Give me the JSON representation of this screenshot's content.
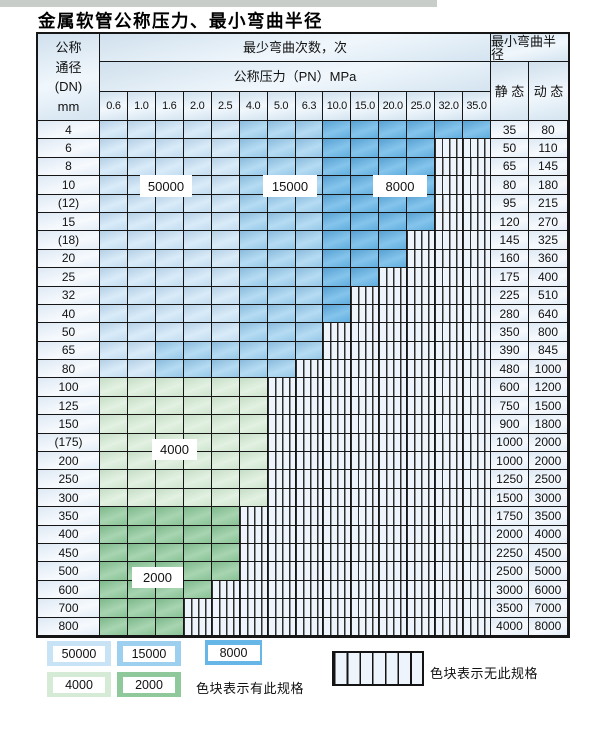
{
  "title": "金属软管公称压力、最小弯曲半径",
  "colors": {
    "blue_50000": "#c9e3f6",
    "blue_15000": "#9dd0ef",
    "blue_8000": "#66b6e7",
    "green_4000": "#d6ebd5",
    "green_2000": "#8fc99b",
    "hatch_bg": "#eef4fb",
    "header_bg": "#dfeef9",
    "grid_line": "#161616",
    "top_strip": "#c9cdc9"
  },
  "table": {
    "header": {
      "dn_lines": [
        "公称",
        "通径",
        "(DN)",
        "mm"
      ],
      "bend_cycles_label": "最少弯曲次数，次",
      "pressure_label": "公称压力（PN）MPa",
      "min_radius_label": "最小弯曲半径",
      "static_label": "静 态",
      "dynamic_label": "动 态",
      "pressures": [
        "0.6",
        "1.0",
        "1.6",
        "2.0",
        "2.5",
        "4.0",
        "5.0",
        "6.3",
        "10.0",
        "15.0",
        "20.0",
        "25.0",
        "32.0",
        "35.0"
      ]
    },
    "rows": [
      {
        "dn": "4",
        "runs": [
          [
            "50000",
            5
          ],
          [
            "15000",
            3
          ],
          [
            "8000",
            6
          ]
        ],
        "static": "35",
        "dynamic": "80"
      },
      {
        "dn": "6",
        "runs": [
          [
            "50000",
            5
          ],
          [
            "15000",
            3
          ],
          [
            "8000",
            4
          ]
        ],
        "static": "50",
        "dynamic": "110"
      },
      {
        "dn": "8",
        "runs": [
          [
            "50000",
            5
          ],
          [
            "15000",
            3
          ],
          [
            "8000",
            4
          ]
        ],
        "static": "65",
        "dynamic": "145"
      },
      {
        "dn": "10",
        "runs": [
          [
            "50000",
            5
          ],
          [
            "15000",
            3
          ],
          [
            "8000",
            4
          ]
        ],
        "static": "80",
        "dynamic": "180"
      },
      {
        "dn": "(12)",
        "runs": [
          [
            "50000",
            5
          ],
          [
            "15000",
            3
          ],
          [
            "8000",
            4
          ]
        ],
        "static": "95",
        "dynamic": "215"
      },
      {
        "dn": "15",
        "runs": [
          [
            "50000",
            5
          ],
          [
            "15000",
            3
          ],
          [
            "8000",
            4
          ]
        ],
        "static": "120",
        "dynamic": "270"
      },
      {
        "dn": "(18)",
        "runs": [
          [
            "50000",
            5
          ],
          [
            "15000",
            3
          ],
          [
            "8000",
            3
          ]
        ],
        "static": "145",
        "dynamic": "325"
      },
      {
        "dn": "20",
        "runs": [
          [
            "50000",
            5
          ],
          [
            "15000",
            3
          ],
          [
            "8000",
            3
          ]
        ],
        "static": "160",
        "dynamic": "360"
      },
      {
        "dn": "25",
        "runs": [
          [
            "50000",
            5
          ],
          [
            "15000",
            3
          ],
          [
            "8000",
            2
          ]
        ],
        "static": "175",
        "dynamic": "400"
      },
      {
        "dn": "32",
        "runs": [
          [
            "50000",
            5
          ],
          [
            "15000",
            3
          ],
          [
            "8000",
            1
          ]
        ],
        "static": "225",
        "dynamic": "510"
      },
      {
        "dn": "40",
        "runs": [
          [
            "50000",
            5
          ],
          [
            "15000",
            3
          ],
          [
            "8000",
            1
          ]
        ],
        "static": "280",
        "dynamic": "640"
      },
      {
        "dn": "50",
        "runs": [
          [
            "50000",
            5
          ],
          [
            "15000",
            3
          ]
        ],
        "static": "350",
        "dynamic": "800"
      },
      {
        "dn": "65",
        "runs": [
          [
            "50000",
            2
          ],
          [
            "15000",
            6
          ]
        ],
        "static": "390",
        "dynamic": "845"
      },
      {
        "dn": "80",
        "runs": [
          [
            "50000",
            2
          ],
          [
            "15000",
            5
          ]
        ],
        "static": "480",
        "dynamic": "1000"
      },
      {
        "dn": "100",
        "runs": [
          [
            "4000",
            6
          ]
        ],
        "static": "600",
        "dynamic": "1200"
      },
      {
        "dn": "125",
        "runs": [
          [
            "4000",
            6
          ]
        ],
        "static": "750",
        "dynamic": "1500"
      },
      {
        "dn": "150",
        "runs": [
          [
            "4000",
            6
          ]
        ],
        "static": "900",
        "dynamic": "1800"
      },
      {
        "dn": "(175)",
        "runs": [
          [
            "4000",
            6
          ]
        ],
        "static": "1000",
        "dynamic": "2000"
      },
      {
        "dn": "200",
        "runs": [
          [
            "4000",
            6
          ]
        ],
        "static": "1000",
        "dynamic": "2000"
      },
      {
        "dn": "250",
        "runs": [
          [
            "4000",
            6
          ]
        ],
        "static": "1250",
        "dynamic": "2500"
      },
      {
        "dn": "300",
        "runs": [
          [
            "4000",
            6
          ]
        ],
        "static": "1500",
        "dynamic": "3000"
      },
      {
        "dn": "350",
        "runs": [
          [
            "2000",
            5
          ]
        ],
        "static": "1750",
        "dynamic": "3500"
      },
      {
        "dn": "400",
        "runs": [
          [
            "2000",
            5
          ]
        ],
        "static": "2000",
        "dynamic": "4000"
      },
      {
        "dn": "450",
        "runs": [
          [
            "2000",
            5
          ]
        ],
        "static": "2250",
        "dynamic": "4500"
      },
      {
        "dn": "500",
        "runs": [
          [
            "2000",
            5
          ]
        ],
        "static": "2500",
        "dynamic": "5000"
      },
      {
        "dn": "600",
        "runs": [
          [
            "2000",
            4
          ]
        ],
        "static": "3000",
        "dynamic": "6000"
      },
      {
        "dn": "700",
        "runs": [
          [
            "2000",
            3
          ]
        ],
        "static": "3500",
        "dynamic": "7000"
      },
      {
        "dn": "800",
        "runs": [
          [
            "2000",
            3
          ]
        ],
        "static": "4000",
        "dynamic": "8000"
      }
    ]
  },
  "overlays": [
    {
      "label": "50000"
    },
    {
      "label": "15000"
    },
    {
      "label": "8000"
    },
    {
      "label": "4000"
    },
    {
      "label": "2000"
    }
  ],
  "legend": {
    "items": [
      {
        "label": "50000"
      },
      {
        "label": "15000"
      },
      {
        "label": "8000"
      },
      {
        "label": "4000"
      },
      {
        "label": "2000"
      }
    ],
    "has_spec_text": "色块表示有此规格",
    "no_spec_text": "色块表示无此规格"
  }
}
